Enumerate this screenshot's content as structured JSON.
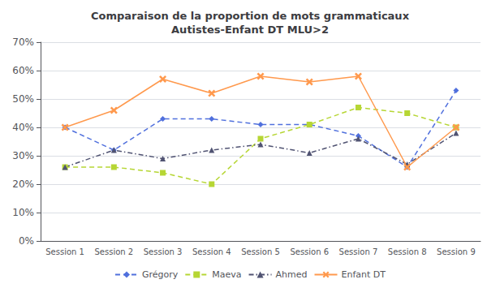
{
  "chart_data": {
    "type": "line",
    "title": "Comparaison de la proportion de mots grammaticaux\nAutistes-Enfant DT MLU>2",
    "categories": [
      "Session 1",
      "Session 2",
      "Session 3",
      "Session 4",
      "Session 5",
      "Session 6",
      "Session 7",
      "Session 8",
      "Session 9"
    ],
    "series": [
      {
        "name": "Grégory",
        "values": [
          0.4,
          0.32,
          0.43,
          0.43,
          0.41,
          0.41,
          0.37,
          0.26,
          0.53
        ],
        "marker": "diamond",
        "line_style": "dashed"
      },
      {
        "name": "Maeva",
        "values": [
          0.26,
          0.26,
          0.24,
          0.2,
          0.36,
          0.41,
          0.47,
          0.45,
          0.4
        ],
        "marker": "square",
        "line_style": "dashed"
      },
      {
        "name": "Ahmed",
        "values": [
          0.26,
          0.32,
          0.29,
          0.32,
          0.34,
          0.31,
          0.36,
          0.27,
          0.38
        ],
        "marker": "triangle",
        "line_style": "dashdot"
      },
      {
        "name": "Enfant DT",
        "values": [
          0.4,
          0.46,
          0.57,
          0.52,
          0.58,
          0.56,
          0.58,
          0.26,
          0.4
        ],
        "marker": "x",
        "line_style": "solid"
      }
    ],
    "ylim": [
      0.0,
      0.7
    ],
    "yticks": [
      {
        "value": 0.0,
        "label": "0%"
      },
      {
        "value": 0.1,
        "label": "10%"
      },
      {
        "value": 0.2,
        "label": "20%"
      },
      {
        "value": 0.3,
        "label": "30%"
      },
      {
        "value": 0.4,
        "label": "40%"
      },
      {
        "value": 0.5,
        "label": "50%"
      },
      {
        "value": 0.6,
        "label": "60%"
      },
      {
        "value": 0.7,
        "label": "70%"
      }
    ],
    "grid": true,
    "legend": "bottom"
  }
}
